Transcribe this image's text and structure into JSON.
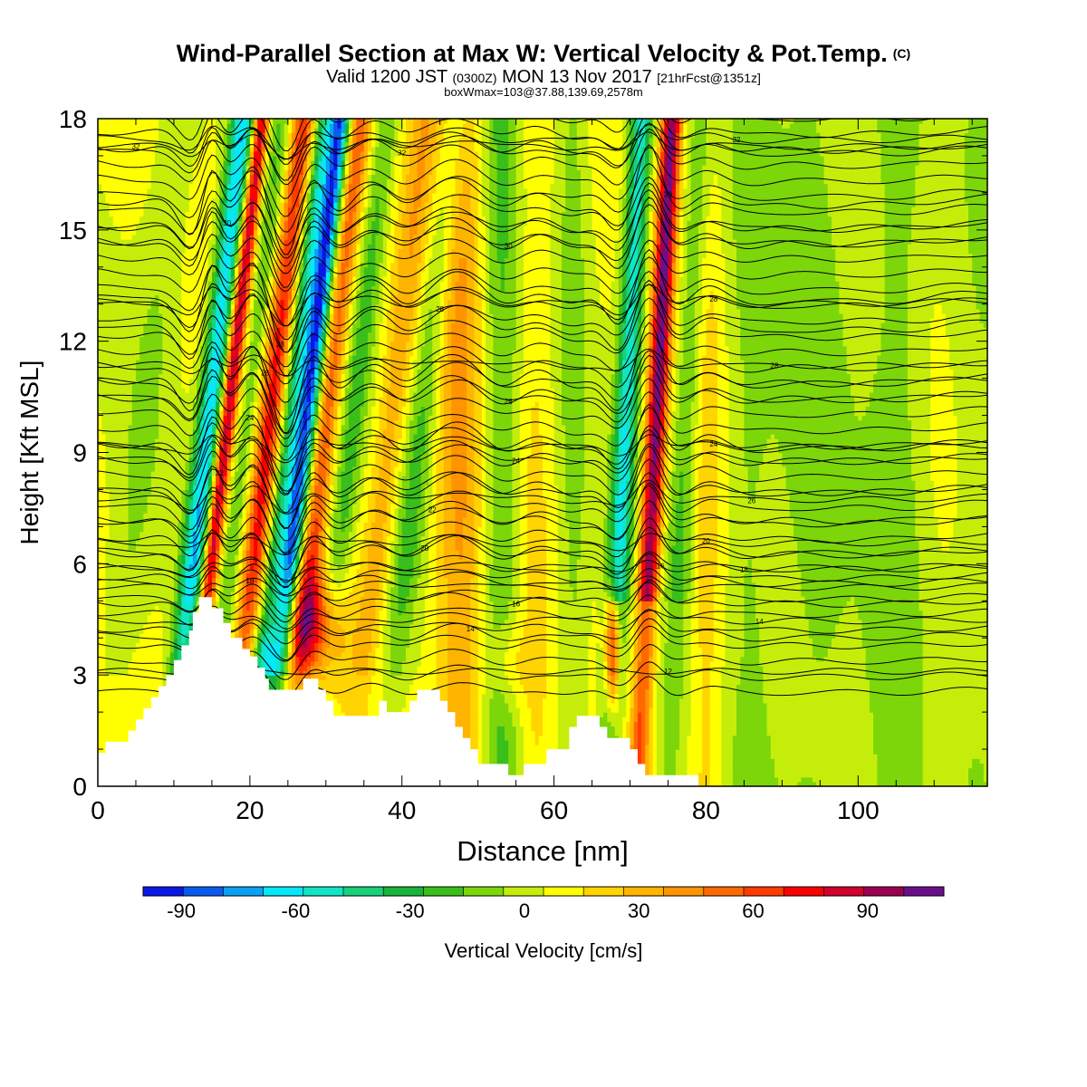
{
  "chart_data": {
    "type": "heatmap",
    "title": "Wind-Parallel Section at Max W: Vertical Velocity & Pot.Temp.",
    "title_mark": "(C)",
    "subtitle_main": "Valid 1200 JST",
    "subtitle_z": "(0300Z)",
    "subtitle_date": "MON 13 Nov 2017",
    "subtitle_fcst": "[21hrFcst@1351z]",
    "subsubtitle": "boxWmax=103@37.88,139.69,2578m",
    "xlabel": "Distance [nm]",
    "ylabel": "Height [Kft MSL]",
    "xlim": [
      0,
      117
    ],
    "ylim": [
      0,
      18
    ],
    "xticks": [
      0,
      20,
      40,
      60,
      80,
      100
    ],
    "yticks": [
      0,
      3,
      6,
      9,
      12,
      15,
      18
    ],
    "colorbar": {
      "label": "Vertical Velocity [cm/s]",
      "ticks": [
        -90,
        -60,
        -30,
        0,
        30,
        60,
        90
      ],
      "bounds": [
        -100,
        110
      ],
      "step": 10,
      "colors": [
        "#0a17e6",
        "#0a5af0",
        "#0aa0f5",
        "#05e8f8",
        "#10e6c4",
        "#16d07a",
        "#16b43a",
        "#3abf1a",
        "#7cd60a",
        "#c4ee0a",
        "#ffff00",
        "#ffd400",
        "#ffb400",
        "#ff9300",
        "#ff6a00",
        "#ff3c00",
        "#ff0000",
        "#d2002d",
        "#9c0050",
        "#6a0f8c"
      ]
    },
    "vertical_velocity_bands": [
      {
        "x": 4,
        "w": 3,
        "v": -12
      },
      {
        "x": 12.5,
        "w": 1.6,
        "v": -70
      },
      {
        "x": 14.9,
        "w": 1.0,
        "v": 80
      },
      {
        "x": 17.5,
        "w": 1.3,
        "v": -20
      },
      {
        "x": 20.5,
        "w": 1.5,
        "v": 60
      },
      {
        "x": 23.3,
        "w": 1.3,
        "v": -45
      },
      {
        "x": 25.3,
        "w": 1.3,
        "v": -90
      },
      {
        "x": 28.0,
        "w": 1.4,
        "v": 45
      },
      {
        "x": 31.5,
        "w": 1.6,
        "v": -25
      },
      {
        "x": 36.5,
        "w": 2.0,
        "v": 25
      },
      {
        "x": 40.5,
        "w": 2.0,
        "v": -25
      },
      {
        "x": 47.5,
        "w": 3.0,
        "v": 40
      },
      {
        "x": 53.0,
        "w": 2.5,
        "v": -30
      },
      {
        "x": 57.5,
        "w": 2.0,
        "v": 12
      },
      {
        "x": 62.5,
        "w": 2.0,
        "v": -20
      },
      {
        "x": 68.5,
        "w": 1.5,
        "v": -60
      },
      {
        "x": 72.5,
        "w": 1.3,
        "v": 90
      },
      {
        "x": 76.5,
        "w": 1.8,
        "v": -25
      },
      {
        "x": 80.0,
        "w": 2.0,
        "v": 18
      },
      {
        "x": 85.5,
        "w": 3.0,
        "v": -18
      },
      {
        "x": 96.0,
        "w": 4.0,
        "v": -15
      },
      {
        "x": 106.0,
        "w": 3.5,
        "v": -12
      }
    ],
    "low_level_features": [
      {
        "x": 28.5,
        "y": 4.3,
        "rx": 3.5,
        "ry": 1.5,
        "v": 60
      },
      {
        "x": 67.7,
        "y": 3.6,
        "rx": 0.9,
        "ry": 1.6,
        "v": 80
      },
      {
        "x": 54.0,
        "y": 3.3,
        "rx": 2.5,
        "ry": 1.2,
        "v": 20
      },
      {
        "x": 22.0,
        "y": 3.5,
        "rx": 1.5,
        "ry": 0.8,
        "v": -30
      }
    ],
    "terrain": [
      [
        0,
        0.9
      ],
      [
        1,
        0.9
      ],
      [
        1,
        1.2
      ],
      [
        4,
        1.2
      ],
      [
        4,
        1.5
      ],
      [
        5,
        1.5
      ],
      [
        5,
        1.8
      ],
      [
        6,
        1.8
      ],
      [
        6,
        2.1
      ],
      [
        7,
        2.1
      ],
      [
        7,
        2.4
      ],
      [
        8,
        2.4
      ],
      [
        8,
        2.7
      ],
      [
        9,
        2.7
      ],
      [
        9,
        3.0
      ],
      [
        10,
        3.0
      ],
      [
        10,
        3.4
      ],
      [
        11,
        3.4
      ],
      [
        11,
        3.8
      ],
      [
        12,
        3.8
      ],
      [
        12,
        4.2
      ],
      [
        12.5,
        4.2
      ],
      [
        12.5,
        4.7
      ],
      [
        13.3,
        4.7
      ],
      [
        13.3,
        5.1
      ],
      [
        15,
        5.1
      ],
      [
        15,
        4.8
      ],
      [
        16.5,
        4.8
      ],
      [
        16.5,
        4.4
      ],
      [
        17.5,
        4.4
      ],
      [
        17.5,
        4.0
      ],
      [
        19,
        4.0
      ],
      [
        19,
        3.7
      ],
      [
        20,
        3.7
      ],
      [
        20,
        3.5
      ],
      [
        21,
        3.5
      ],
      [
        21,
        3.2
      ],
      [
        22,
        3.2
      ],
      [
        22,
        2.9
      ],
      [
        22.5,
        2.9
      ],
      [
        22.5,
        2.6
      ],
      [
        27,
        2.6
      ],
      [
        27,
        2.9
      ],
      [
        29,
        2.9
      ],
      [
        29,
        2.6
      ],
      [
        30,
        2.6
      ],
      [
        30,
        2.3
      ],
      [
        31,
        2.3
      ],
      [
        31,
        1.9
      ],
      [
        37,
        1.9
      ],
      [
        37,
        2.3
      ],
      [
        38,
        2.3
      ],
      [
        38,
        2.0
      ],
      [
        41,
        2.0
      ],
      [
        41,
        2.3
      ],
      [
        42,
        2.3
      ],
      [
        42,
        2.6
      ],
      [
        45,
        2.6
      ],
      [
        45,
        2.3
      ],
      [
        46,
        2.3
      ],
      [
        46,
        2.0
      ],
      [
        47,
        2.0
      ],
      [
        47,
        1.6
      ],
      [
        48,
        1.6
      ],
      [
        48,
        1.3
      ],
      [
        49,
        1.3
      ],
      [
        49,
        1.0
      ],
      [
        50,
        1.0
      ],
      [
        50,
        0.6
      ],
      [
        54,
        0.6
      ],
      [
        54,
        0.3
      ],
      [
        56,
        0.3
      ],
      [
        56,
        0.6
      ],
      [
        59,
        0.6
      ],
      [
        59,
        1.0
      ],
      [
        62,
        1.0
      ],
      [
        62,
        1.6
      ],
      [
        63,
        1.6
      ],
      [
        63,
        1.9
      ],
      [
        66,
        1.9
      ],
      [
        66,
        1.6
      ],
      [
        67,
        1.6
      ],
      [
        67,
        1.3
      ],
      [
        70,
        1.3
      ],
      [
        70,
        1.0
      ],
      [
        71,
        1.0
      ],
      [
        71,
        0.6
      ],
      [
        72,
        0.6
      ],
      [
        72,
        0.3
      ],
      [
        79,
        0.3
      ],
      [
        79,
        0
      ],
      [
        117,
        0
      ]
    ],
    "theta_contours": [
      {
        "label": "12",
        "z": 3.1,
        "lx": 75,
        "peak": 0.0
      },
      {
        "label": "14",
        "z": 4.1,
        "lx": 49,
        "peak": 0.6
      },
      {
        "label": "14",
        "z": 4.5,
        "lx": 87,
        "peak": 0.3
      },
      {
        "label": "16",
        "z": 5.0,
        "lx": 55,
        "peak": 0.6
      },
      {
        "label": "16",
        "z": 5.7,
        "lx": 74,
        "peak": 0.6
      },
      {
        "label": "18",
        "z": 5.4,
        "lx": 20,
        "peak": 0.3
      },
      {
        "label": "18",
        "z": 5.9,
        "lx": 85,
        "peak": 0.3
      },
      {
        "label": "20",
        "z": 6.4,
        "lx": 43,
        "peak": 0.8
      },
      {
        "label": "20",
        "z": 6.6,
        "lx": 80,
        "peak": 0.3
      },
      {
        "label": "22",
        "z": 7.3,
        "lx": 44,
        "peak": 1.0
      },
      {
        "label": "22",
        "z": 8.1,
        "lx": 16,
        "peak": 1.2
      },
      {
        "label": "26",
        "z": 7.8,
        "lx": 86,
        "peak": 0.5
      },
      {
        "label": "24",
        "z": 8.9,
        "lx": 55,
        "peak": 0.9
      },
      {
        "label": "24",
        "z": 9.3,
        "lx": 20,
        "peak": 1.3
      },
      {
        "label": "24",
        "z": 9.2,
        "lx": 81,
        "peak": 0.4
      },
      {
        "label": "26",
        "z": 10.6,
        "lx": 54,
        "peak": 1.2
      },
      {
        "label": "28",
        "z": 11.1,
        "lx": 22,
        "peak": 1.6
      },
      {
        "label": "28",
        "z": 11.4,
        "lx": 89,
        "peak": 0.4
      },
      {
        "label": "28",
        "z": 12.5,
        "lx": 45,
        "peak": 1.4
      },
      {
        "label": "28",
        "z": 13.3,
        "lx": 24,
        "peak": 1.5
      },
      {
        "label": "28",
        "z": 13.1,
        "lx": 81,
        "peak": 0.6
      },
      {
        "label": "30",
        "z": 14.8,
        "lx": 54,
        "peak": 1.3
      },
      {
        "label": "30",
        "z": 15.2,
        "lx": 17,
        "peak": 1.2
      },
      {
        "label": "30",
        "z": 15.9,
        "lx": 75,
        "peak": 1.6
      },
      {
        "label": "32",
        "z": 17.3,
        "lx": 5,
        "peak": 0.4
      },
      {
        "label": "32",
        "z": 17.2,
        "lx": 40,
        "peak": 0.9
      },
      {
        "label": "32",
        "z": 17.5,
        "lx": 84,
        "peak": 0.5
      }
    ]
  }
}
